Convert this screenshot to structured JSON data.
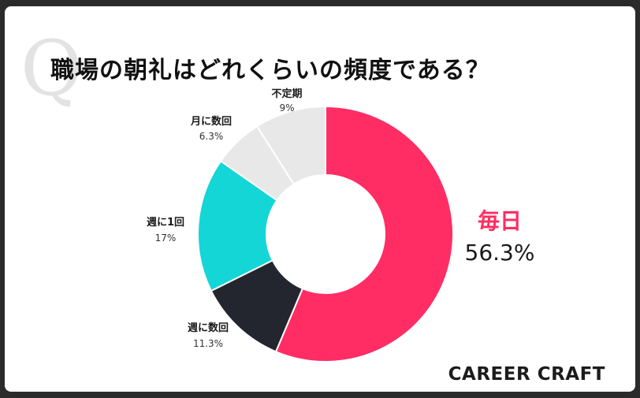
{
  "title": "職場の朝礼はどれくらいの頻度である？",
  "brand": "CAREER CRAFT",
  "watermark_letter": "Q",
  "chart_data": {
    "type": "pie",
    "title": "職場の朝礼はどれくらいの頻度である？",
    "start": "top",
    "direction": "clockwise",
    "categories": [
      "毎日",
      "週に数回",
      "週に1回",
      "月に数回",
      "不定期"
    ],
    "values": [
      56.3,
      11.3,
      17,
      6.3,
      9
    ],
    "value_labels": [
      "56.3%",
      "11.3%",
      "17%",
      "6.3%",
      "9%"
    ],
    "colors": [
      "#ff2d63",
      "#23262f",
      "#14d6d6",
      "#e8e8e8",
      "#e8e8e8"
    ],
    "label_colors": [
      "#ff2d63",
      "#1a1a1a",
      "#1a1a1a",
      "#1a1a1a",
      "#1a1a1a"
    ],
    "highlight_index": 0
  }
}
